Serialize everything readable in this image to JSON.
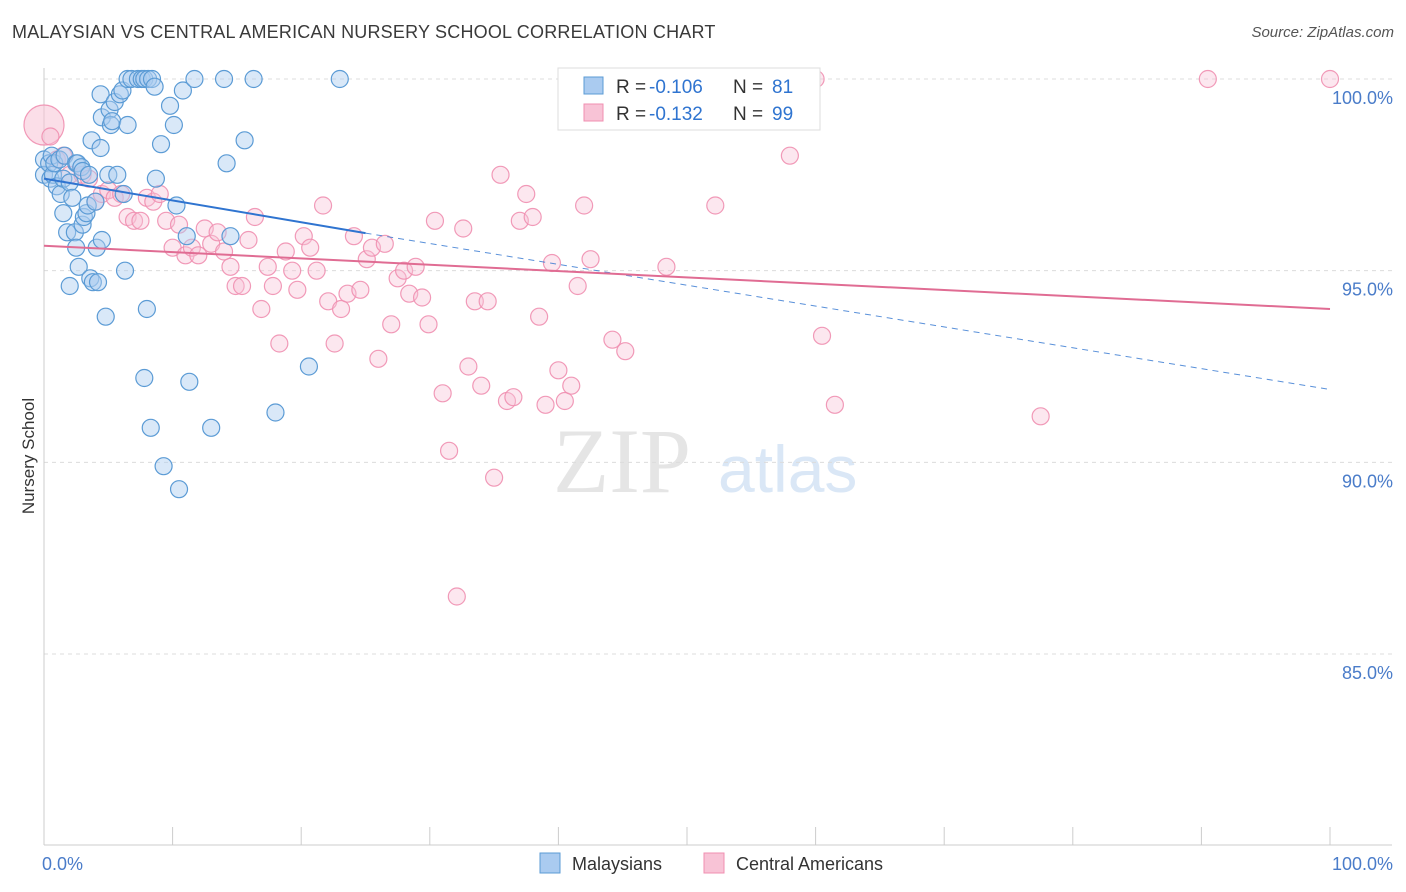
{
  "header": {
    "title": "MALAYSIAN VS CENTRAL AMERICAN NURSERY SCHOOL CORRELATION CHART",
    "source": "Source: ZipAtlas.com"
  },
  "watermark": {
    "zip": "ZIP",
    "atlas": "atlas"
  },
  "colors": {
    "blue": "#5b9bd5",
    "blue_fill": "#aacbf0",
    "blue_line": "#2f74d0",
    "pink": "#f08fb0",
    "pink_fill": "#f8c3d6",
    "pink_line": "#e06c93",
    "axis_label": "#4a7cc9",
    "grid": "#dcdcdc"
  },
  "stats_legend": [
    {
      "r_label": "R = ",
      "r_value": "-0.106",
      "n_label": "N = ",
      "n_value": "81"
    },
    {
      "r_label": "R = ",
      "r_value": "-0.132",
      "n_label": "N = ",
      "n_value": "99"
    }
  ],
  "chart_data": {
    "type": "scatter",
    "title": "MALAYSIAN VS CENTRAL AMERICAN NURSERY SCHOOL CORRELATION CHART",
    "xlabel": "",
    "ylabel": "Nursery School",
    "xlim": [
      0,
      100
    ],
    "ylim": [
      80.5,
      100.5
    ],
    "x_tick_labels": [
      "0.0%",
      "100.0%"
    ],
    "y_ticks": [
      100,
      95,
      90,
      85
    ],
    "y_tick_labels": [
      "100.0%",
      "95.0%",
      "90.0%",
      "85.0%"
    ],
    "grid": true,
    "legend_position": "bottom",
    "series": [
      {
        "name": "Malaysians",
        "color": "#5b9bd5",
        "trend": {
          "x": [
            0,
            25
          ],
          "y": [
            97.4,
            95.98
          ],
          "dashed_to": [
            100,
            91.9
          ]
        },
        "points": [
          [
            0,
            97.9
          ],
          [
            0,
            97.5
          ],
          [
            0.4,
            97.8
          ],
          [
            0.5,
            97.4
          ],
          [
            0.6,
            98.0
          ],
          [
            0.7,
            97.5
          ],
          [
            0.8,
            97.8
          ],
          [
            1.0,
            97.2
          ],
          [
            1.2,
            97.9
          ],
          [
            1.3,
            97.0
          ],
          [
            1.5,
            97.4
          ],
          [
            1.5,
            96.5
          ],
          [
            1.6,
            98.0
          ],
          [
            1.8,
            96.0
          ],
          [
            2.0,
            97.3
          ],
          [
            2.0,
            94.6
          ],
          [
            2.2,
            96.9
          ],
          [
            2.4,
            96.0
          ],
          [
            2.5,
            97.8
          ],
          [
            2.5,
            95.6
          ],
          [
            2.6,
            97.8
          ],
          [
            2.7,
            95.1
          ],
          [
            2.9,
            97.7
          ],
          [
            3.0,
            96.2
          ],
          [
            3.0,
            97.6
          ],
          [
            3.1,
            96.4
          ],
          [
            3.3,
            96.5
          ],
          [
            3.4,
            96.7
          ],
          [
            3.5,
            97.5
          ],
          [
            3.6,
            94.8
          ],
          [
            3.7,
            98.4
          ],
          [
            3.8,
            94.7
          ],
          [
            4.0,
            96.8
          ],
          [
            4.1,
            95.6
          ],
          [
            4.2,
            94.7
          ],
          [
            4.4,
            98.2
          ],
          [
            4.4,
            99.6
          ],
          [
            4.5,
            99.0
          ],
          [
            4.5,
            95.8
          ],
          [
            4.8,
            93.8
          ],
          [
            5.0,
            97.5
          ],
          [
            5.1,
            99.2
          ],
          [
            5.2,
            98.8
          ],
          [
            5.3,
            98.9
          ],
          [
            5.5,
            99.4
          ],
          [
            5.7,
            97.5
          ],
          [
            5.9,
            99.6
          ],
          [
            6.1,
            99.7
          ],
          [
            6.2,
            97.0
          ],
          [
            6.3,
            95.0
          ],
          [
            6.5,
            98.8
          ],
          [
            6.5,
            100
          ],
          [
            6.8,
            100
          ],
          [
            7.3,
            100
          ],
          [
            7.6,
            100
          ],
          [
            7.8,
            100
          ],
          [
            7.8,
            92.2
          ],
          [
            8.0,
            94.0
          ],
          [
            8.1,
            100
          ],
          [
            8.3,
            90.9
          ],
          [
            8.4,
            100
          ],
          [
            8.6,
            99.8
          ],
          [
            8.7,
            97.4
          ],
          [
            9.1,
            98.3
          ],
          [
            9.3,
            89.9
          ],
          [
            9.8,
            99.3
          ],
          [
            10.1,
            98.8
          ],
          [
            10.3,
            96.7
          ],
          [
            10.5,
            89.3
          ],
          [
            10.8,
            99.7
          ],
          [
            11.1,
            95.9
          ],
          [
            11.3,
            92.1
          ],
          [
            11.7,
            100
          ],
          [
            13.0,
            90.9
          ],
          [
            14.0,
            100
          ],
          [
            14.2,
            97.8
          ],
          [
            14.5,
            95.9
          ],
          [
            15.6,
            98.4
          ],
          [
            16.3,
            100
          ],
          [
            18.0,
            91.3
          ],
          [
            20.6,
            92.5
          ],
          [
            23.0,
            100
          ]
        ]
      },
      {
        "name": "Central Americans",
        "color": "#f08fb0",
        "trend": {
          "x": [
            0,
            100
          ],
          "y": [
            95.65,
            94.0
          ]
        },
        "points": [
          [
            0,
            98.8
          ],
          [
            0.5,
            98.5
          ],
          [
            1.0,
            97.9
          ],
          [
            1.5,
            98.0
          ],
          [
            2.0,
            97.5
          ],
          [
            3.0,
            97.5
          ],
          [
            3.5,
            97.4
          ],
          [
            4.0,
            96.8
          ],
          [
            4.5,
            97.0
          ],
          [
            5.0,
            97.1
          ],
          [
            5.5,
            96.9
          ],
          [
            6.0,
            97.0
          ],
          [
            6.5,
            96.4
          ],
          [
            7.0,
            96.3
          ],
          [
            7.5,
            96.3
          ],
          [
            8.0,
            96.9
          ],
          [
            8.5,
            96.8
          ],
          [
            9.0,
            97.0
          ],
          [
            9.5,
            96.3
          ],
          [
            10.0,
            95.6
          ],
          [
            10.5,
            96.2
          ],
          [
            11.0,
            95.4
          ],
          [
            11.5,
            95.6
          ],
          [
            12.0,
            95.4
          ],
          [
            12.5,
            96.1
          ],
          [
            13.0,
            95.7
          ],
          [
            13.5,
            96.0
          ],
          [
            14.0,
            95.5
          ],
          [
            14.5,
            95.1
          ],
          [
            14.9,
            94.6
          ],
          [
            15.4,
            94.6
          ],
          [
            15.9,
            95.8
          ],
          [
            16.4,
            96.4
          ],
          [
            16.9,
            94.0
          ],
          [
            17.4,
            95.1
          ],
          [
            17.8,
            94.6
          ],
          [
            18.3,
            93.1
          ],
          [
            18.8,
            95.5
          ],
          [
            19.3,
            95.0
          ],
          [
            19.7,
            94.5
          ],
          [
            20.2,
            95.9
          ],
          [
            20.7,
            95.6
          ],
          [
            21.2,
            95.0
          ],
          [
            21.7,
            96.7
          ],
          [
            22.1,
            94.2
          ],
          [
            22.6,
            93.1
          ],
          [
            23.1,
            94.0
          ],
          [
            23.6,
            94.4
          ],
          [
            24.1,
            95.9
          ],
          [
            24.6,
            94.5
          ],
          [
            25.1,
            95.3
          ],
          [
            25.5,
            95.6
          ],
          [
            26.0,
            92.7
          ],
          [
            26.5,
            95.7
          ],
          [
            27.0,
            93.6
          ],
          [
            27.5,
            94.8
          ],
          [
            28.0,
            95.0
          ],
          [
            28.4,
            94.4
          ],
          [
            28.9,
            95.1
          ],
          [
            29.4,
            94.3
          ],
          [
            29.9,
            93.6
          ],
          [
            30.4,
            96.3
          ],
          [
            31.0,
            91.8
          ],
          [
            31.5,
            90.3
          ],
          [
            32.1,
            86.5
          ],
          [
            32.6,
            96.1
          ],
          [
            33.0,
            92.5
          ],
          [
            33.5,
            94.2
          ],
          [
            34.0,
            92.0
          ],
          [
            34.5,
            94.2
          ],
          [
            35.0,
            89.6
          ],
          [
            35.5,
            97.5
          ],
          [
            36.0,
            91.6
          ],
          [
            36.5,
            91.7
          ],
          [
            37.0,
            96.3
          ],
          [
            37.5,
            97.0
          ],
          [
            38.0,
            96.4
          ],
          [
            38.5,
            93.8
          ],
          [
            39.0,
            91.5
          ],
          [
            39.5,
            95.2
          ],
          [
            40.0,
            92.4
          ],
          [
            40.5,
            91.6
          ],
          [
            41.0,
            92.0
          ],
          [
            41.5,
            94.6
          ],
          [
            42.0,
            96.7
          ],
          [
            42.5,
            95.3
          ],
          [
            44.2,
            93.2
          ],
          [
            45.2,
            92.9
          ],
          [
            46.1,
            99.2
          ],
          [
            48.4,
            95.1
          ],
          [
            49.2,
            100
          ],
          [
            52.2,
            96.7
          ],
          [
            58.0,
            98.0
          ],
          [
            60.0,
            100
          ],
          [
            60.5,
            93.3
          ],
          [
            61.5,
            91.5
          ],
          [
            77.5,
            91.2
          ],
          [
            90.5,
            100
          ],
          [
            100,
            100
          ]
        ]
      }
    ]
  }
}
